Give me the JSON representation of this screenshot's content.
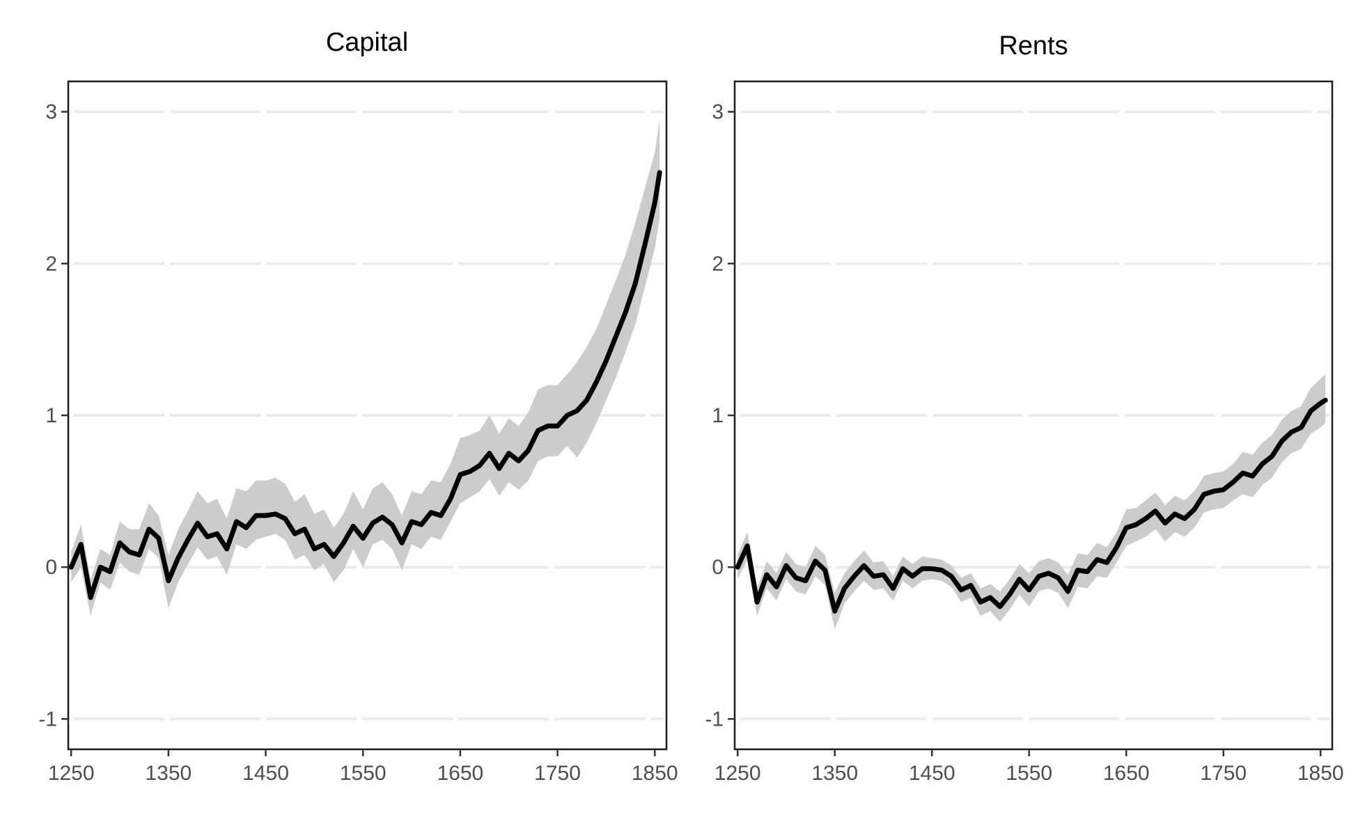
{
  "colors": {
    "line": "#000000",
    "band": "#cccccc",
    "grid": "#ebebeb",
    "frame": "#1a1a1a",
    "tick_text": "#4d4d4d"
  },
  "chart_data": [
    {
      "type": "line",
      "title": "Capital",
      "xlabel": "",
      "ylabel": "",
      "xlim": [
        1247,
        1862
      ],
      "ylim": [
        -1.2,
        3.2
      ],
      "x_ticks": [
        "1250",
        "1350",
        "1450",
        "1550",
        "1650",
        "1750",
        "1850"
      ],
      "y_ticks": [
        "-1",
        "0",
        "1",
        "2",
        "3"
      ],
      "grid": true,
      "legend": "none",
      "x": [
        1250,
        1260,
        1270,
        1280,
        1290,
        1300,
        1310,
        1320,
        1330,
        1340,
        1350,
        1360,
        1370,
        1380,
        1390,
        1400,
        1410,
        1420,
        1430,
        1440,
        1450,
        1460,
        1470,
        1480,
        1490,
        1500,
        1510,
        1520,
        1530,
        1540,
        1550,
        1560,
        1570,
        1580,
        1590,
        1600,
        1610,
        1620,
        1630,
        1640,
        1650,
        1660,
        1670,
        1680,
        1690,
        1700,
        1710,
        1720,
        1730,
        1740,
        1750,
        1760,
        1770,
        1780,
        1790,
        1800,
        1810,
        1820,
        1830,
        1840,
        1850,
        1855
      ],
      "series": [
        {
          "values": [
            0,
            0.15,
            -0.2,
            0,
            -0.03,
            0.16,
            0.1,
            0.08,
            0.25,
            0.19,
            -0.09,
            0.06,
            0.18,
            0.29,
            0.2,
            0.22,
            0.12,
            0.3,
            0.26,
            0.34,
            0.34,
            0.35,
            0.32,
            0.22,
            0.25,
            0.12,
            0.15,
            0.07,
            0.16,
            0.27,
            0.19,
            0.29,
            0.33,
            0.28,
            0.16,
            0.3,
            0.28,
            0.36,
            0.34,
            0.45,
            0.61,
            0.63,
            0.67,
            0.75,
            0.65,
            0.75,
            0.7,
            0.77,
            0.9,
            0.93,
            0.93,
            1.0,
            1.03,
            1.1,
            1.22,
            1.36,
            1.52,
            1.68,
            1.87,
            2.13,
            2.4,
            2.6
          ],
          "lower": [
            -0.1,
            0,
            -0.32,
            -0.1,
            -0.15,
            0.03,
            -0.03,
            -0.05,
            0.12,
            0.06,
            -0.27,
            -0.1,
            0.02,
            0.13,
            0.05,
            0.07,
            -0.05,
            0.15,
            0.12,
            0.18,
            0.2,
            0.22,
            0.18,
            0.05,
            0.08,
            -0.02,
            0.02,
            -0.1,
            -0.02,
            0.12,
            0,
            0.15,
            0.18,
            0.12,
            -0.02,
            0.15,
            0.12,
            0.2,
            0.18,
            0.3,
            0.42,
            0.46,
            0.5,
            0.58,
            0.47,
            0.56,
            0.51,
            0.57,
            0.7,
            0.73,
            0.73,
            0.8,
            0.72,
            0.82,
            0.95,
            1.1,
            1.25,
            1.42,
            1.6,
            1.85,
            2.1,
            2.3
          ],
          "upper": [
            0.1,
            0.28,
            -0.08,
            0.12,
            0.08,
            0.3,
            0.25,
            0.25,
            0.42,
            0.34,
            0.08,
            0.25,
            0.37,
            0.5,
            0.42,
            0.45,
            0.32,
            0.52,
            0.5,
            0.57,
            0.57,
            0.59,
            0.55,
            0.43,
            0.48,
            0.35,
            0.38,
            0.26,
            0.35,
            0.5,
            0.38,
            0.52,
            0.56,
            0.48,
            0.34,
            0.5,
            0.48,
            0.57,
            0.56,
            0.68,
            0.85,
            0.87,
            0.9,
            1.0,
            0.88,
            0.98,
            0.93,
            1.02,
            1.17,
            1.2,
            1.2,
            1.27,
            1.35,
            1.45,
            1.57,
            1.73,
            1.89,
            2.06,
            2.27,
            2.5,
            2.73,
            2.95
          ]
        }
      ]
    },
    {
      "type": "line",
      "title": "Rents",
      "xlabel": "",
      "ylabel": "",
      "xlim": [
        1247,
        1862
      ],
      "ylim": [
        -1.2,
        3.2
      ],
      "x_ticks": [
        "1250",
        "1350",
        "1450",
        "1550",
        "1650",
        "1750",
        "1850"
      ],
      "y_ticks": [
        "-1",
        "0",
        "1",
        "2",
        "3"
      ],
      "grid": true,
      "legend": "none",
      "x": [
        1250,
        1260,
        1270,
        1280,
        1290,
        1300,
        1310,
        1320,
        1330,
        1340,
        1350,
        1360,
        1370,
        1380,
        1390,
        1400,
        1410,
        1420,
        1430,
        1440,
        1450,
        1460,
        1470,
        1480,
        1490,
        1500,
        1510,
        1520,
        1530,
        1540,
        1550,
        1560,
        1570,
        1580,
        1590,
        1600,
        1610,
        1620,
        1630,
        1640,
        1650,
        1660,
        1670,
        1680,
        1690,
        1700,
        1710,
        1720,
        1730,
        1740,
        1750,
        1760,
        1770,
        1780,
        1790,
        1800,
        1810,
        1820,
        1830,
        1840,
        1850,
        1855
      ],
      "series": [
        {
          "values": [
            0,
            0.14,
            -0.23,
            -0.05,
            -0.13,
            0.01,
            -0.07,
            -0.09,
            0.04,
            -0.02,
            -0.29,
            -0.14,
            -0.06,
            0.01,
            -0.06,
            -0.05,
            -0.14,
            -0.01,
            -0.06,
            -0.01,
            -0.01,
            -0.02,
            -0.06,
            -0.15,
            -0.12,
            -0.23,
            -0.2,
            -0.26,
            -0.18,
            -0.08,
            -0.15,
            -0.06,
            -0.04,
            -0.07,
            -0.16,
            -0.02,
            -0.03,
            0.05,
            0.03,
            0.13,
            0.26,
            0.28,
            0.32,
            0.37,
            0.29,
            0.35,
            0.32,
            0.38,
            0.48,
            0.5,
            0.51,
            0.56,
            0.62,
            0.6,
            0.68,
            0.73,
            0.83,
            0.89,
            0.92,
            1.03,
            1.08,
            1.1
          ],
          "lower": [
            -0.08,
            0.05,
            -0.32,
            -0.14,
            -0.22,
            -0.08,
            -0.16,
            -0.18,
            -0.06,
            -0.12,
            -0.41,
            -0.24,
            -0.16,
            -0.09,
            -0.15,
            -0.14,
            -0.22,
            -0.09,
            -0.14,
            -0.09,
            -0.08,
            -0.09,
            -0.13,
            -0.23,
            -0.2,
            -0.32,
            -0.29,
            -0.36,
            -0.28,
            -0.18,
            -0.26,
            -0.16,
            -0.14,
            -0.17,
            -0.27,
            -0.13,
            -0.14,
            -0.06,
            -0.07,
            0.03,
            0.14,
            0.17,
            0.2,
            0.25,
            0.17,
            0.23,
            0.2,
            0.26,
            0.36,
            0.38,
            0.39,
            0.44,
            0.48,
            0.46,
            0.54,
            0.59,
            0.69,
            0.75,
            0.78,
            0.88,
            0.92,
            0.95
          ],
          "upper": [
            0.08,
            0.23,
            -0.14,
            0.04,
            -0.04,
            0.1,
            0.02,
            0,
            0.14,
            0.08,
            -0.17,
            -0.04,
            0.04,
            0.11,
            0.03,
            0.04,
            -0.06,
            0.07,
            0.02,
            0.07,
            0.06,
            0.05,
            0.01,
            -0.07,
            -0.04,
            -0.14,
            -0.11,
            -0.16,
            -0.08,
            0.02,
            -0.04,
            0.04,
            0.06,
            0.03,
            -0.05,
            0.09,
            0.08,
            0.16,
            0.13,
            0.23,
            0.38,
            0.39,
            0.44,
            0.49,
            0.41,
            0.47,
            0.44,
            0.5,
            0.6,
            0.62,
            0.63,
            0.68,
            0.76,
            0.74,
            0.82,
            0.87,
            0.97,
            1.03,
            1.06,
            1.18,
            1.24,
            1.27
          ]
        }
      ]
    }
  ]
}
